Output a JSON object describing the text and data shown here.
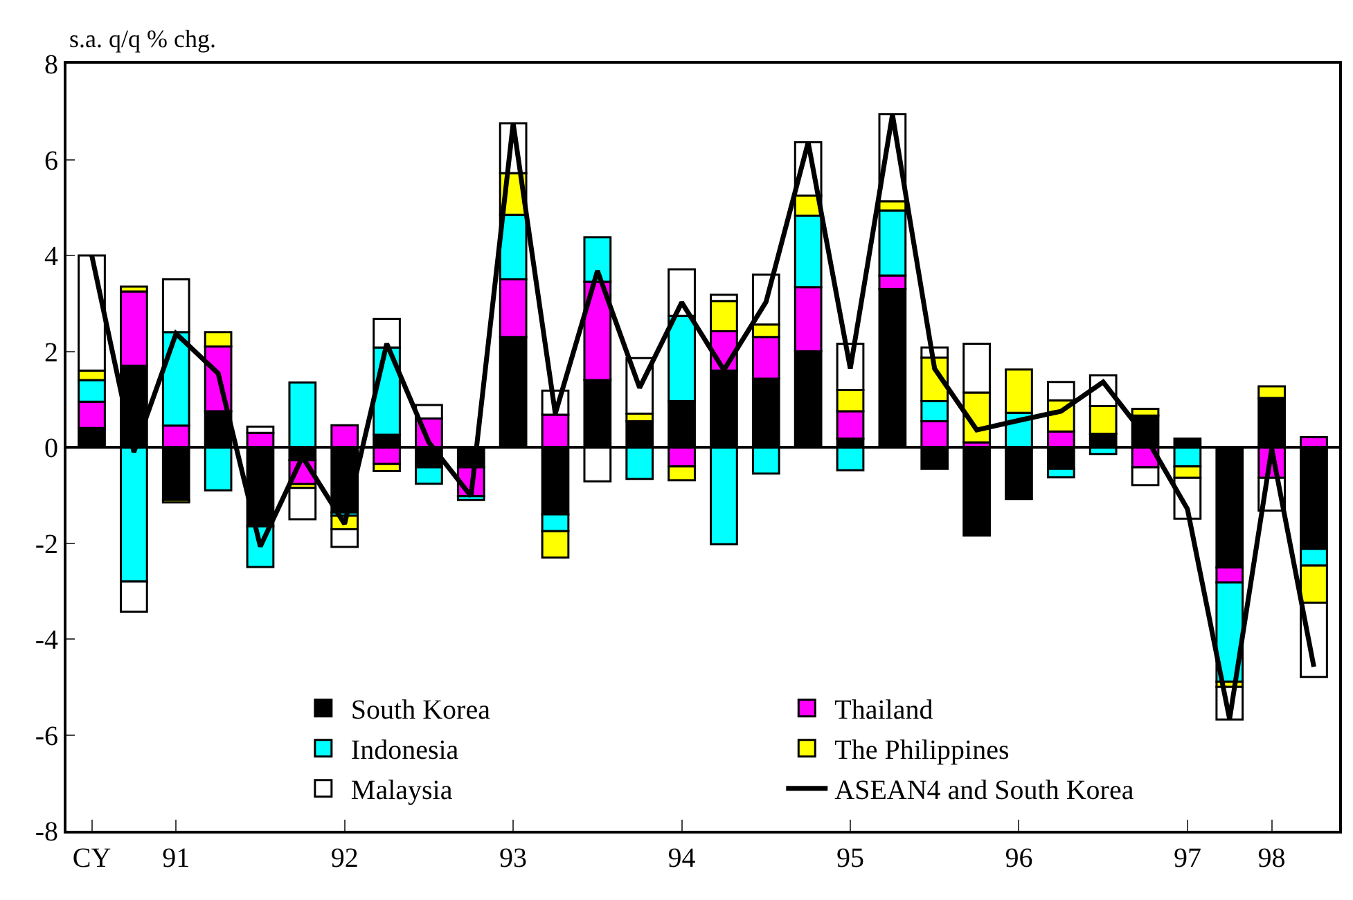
{
  "chart_data": {
    "type": "bar",
    "stacked": true,
    "ylabel": "s.a. q/q % chg.",
    "categories": [
      "CY",
      null,
      "91",
      null,
      null,
      null,
      "92",
      null,
      null,
      null,
      "93",
      null,
      null,
      null,
      "94",
      null,
      null,
      null,
      "95",
      null,
      null,
      null,
      "96",
      null,
      null,
      null,
      "97",
      null,
      "98",
      null
    ],
    "series": [
      {
        "name": "South Korea",
        "color": "#000000",
        "values": [
          0.4,
          1.7,
          -1.1,
          0.75,
          -1.65,
          -0.27,
          -1.36,
          0.26,
          -0.42,
          -0.42,
          2.3,
          -1.4,
          1.4,
          0.54,
          0.96,
          1.6,
          1.43,
          2.0,
          0.18,
          3.3,
          -0.45,
          -1.84,
          -1.08,
          -0.45,
          0.28,
          0.66,
          0.18,
          -2.51,
          1.03,
          -2.12
        ]
      },
      {
        "name": "Thailand",
        "color": "#ff00ff",
        "values": [
          0.55,
          1.55,
          0.45,
          1.35,
          0.3,
          -0.5,
          0.46,
          -0.35,
          0.6,
          -0.6,
          1.2,
          0.68,
          2.05,
          0,
          -0.4,
          0.82,
          0.87,
          1.34,
          0.57,
          0.28,
          0.54,
          0.1,
          0,
          0.33,
          0,
          -0.42,
          0,
          -0.31,
          -0.64,
          0.21
        ]
      },
      {
        "name": "Indonesia",
        "color": "#00ffff",
        "values": [
          0.45,
          -2.8,
          1.95,
          -0.9,
          -0.85,
          1.35,
          -0.07,
          1.82,
          -0.34,
          -0.08,
          1.35,
          -0.35,
          0.93,
          -0.66,
          1.78,
          -2.02,
          -0.55,
          1.49,
          -0.48,
          1.36,
          0.42,
          0,
          0.72,
          -0.18,
          -0.14,
          0,
          -0.4,
          -2.07,
          0,
          -0.35
        ]
      },
      {
        "name": "The Philippines",
        "color": "#ffff00",
        "values": [
          0.2,
          0.1,
          -0.05,
          0.3,
          0,
          -0.08,
          -0.28,
          -0.15,
          0,
          0,
          0.87,
          -0.55,
          0,
          0.16,
          -0.29,
          0.63,
          0.26,
          0.42,
          0.44,
          0.19,
          0.91,
          1.04,
          0.9,
          0.65,
          0.58,
          0.14,
          -0.24,
          -0.11,
          0.24,
          -0.77
        ]
      },
      {
        "name": "Malaysia",
        "color": "#ffffff",
        "values": [
          2.4,
          -0.63,
          1.1,
          0,
          0.13,
          -0.65,
          -0.37,
          0.6,
          0.28,
          0,
          1.04,
          0.5,
          -0.71,
          1.16,
          0.97,
          0.13,
          1.04,
          1.11,
          0.97,
          1.82,
          0.21,
          1.02,
          0,
          0.38,
          0.64,
          -0.37,
          -0.85,
          -0.68,
          -0.68,
          -1.55
        ]
      },
      {
        "name": "ASEAN4 and South Korea",
        "type": "line",
        "color": "#000000",
        "values": [
          4.0,
          -0.1,
          2.37,
          1.54,
          -2.07,
          -0.2,
          -1.6,
          2.16,
          0.1,
          -1.02,
          6.76,
          0.7,
          3.68,
          1.24,
          3.02,
          1.61,
          3.03,
          6.36,
          1.64,
          6.94,
          1.64,
          0.36,
          0.56,
          0.75,
          1.36,
          0.23,
          -1.29,
          -5.67,
          -0.03,
          -4.58
        ]
      }
    ],
    "ylim": [
      -8,
      8
    ],
    "yticks": [
      -8,
      -6,
      -4,
      -2,
      0,
      2,
      4,
      6,
      8
    ],
    "ref_lines": [
      {
        "axis": "y",
        "value": 0,
        "color": "#000000",
        "line_style": "solid"
      }
    ],
    "legend": "bottom",
    "marker": "none",
    "line_style": "solid"
  }
}
